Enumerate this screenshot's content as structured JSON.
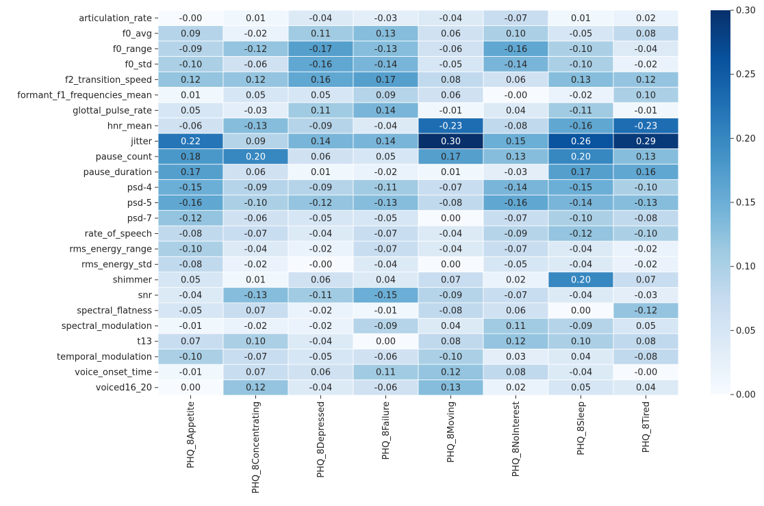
{
  "chart_data": {
    "type": "heatmap",
    "title": "",
    "xlabel": "",
    "ylabel": "",
    "rows": [
      "articulation_rate",
      "f0_avg",
      "f0_range",
      "f0_std",
      "f2_transition_speed",
      "formant_f1_frequencies_mean",
      "glottal_pulse_rate",
      "hnr_mean",
      "jitter",
      "pause_count",
      "pause_duration",
      "psd-4",
      "psd-5",
      "psd-7",
      "rate_of_speech",
      "rms_energy_range",
      "rms_energy_std",
      "shimmer",
      "snr",
      "spectral_flatness",
      "spectral_modulation",
      "t13",
      "temporal_modulation",
      "voice_onset_time",
      "voiced16_20"
    ],
    "columns": [
      "PHQ_8Appetite",
      "PHQ_8Concentrating",
      "PHQ_8Depressed",
      "PHQ_8Failure",
      "PHQ_8Moving",
      "PHQ_8NoInterest",
      "PHQ_8Sleep",
      "PHQ_8Tired"
    ],
    "values": [
      [
        -0.0,
        0.01,
        -0.04,
        -0.03,
        -0.04,
        -0.07,
        0.01,
        0.02
      ],
      [
        0.09,
        -0.02,
        0.11,
        0.13,
        0.06,
        0.1,
        -0.05,
        0.08
      ],
      [
        -0.09,
        -0.12,
        -0.17,
        -0.13,
        -0.06,
        -0.16,
        -0.1,
        -0.04
      ],
      [
        -0.1,
        -0.06,
        -0.16,
        -0.14,
        -0.05,
        -0.14,
        -0.1,
        -0.02
      ],
      [
        0.12,
        0.12,
        0.16,
        0.17,
        0.08,
        0.06,
        0.13,
        0.12
      ],
      [
        0.01,
        0.05,
        0.05,
        0.09,
        0.06,
        -0.0,
        -0.02,
        0.1
      ],
      [
        0.05,
        -0.03,
        0.11,
        0.14,
        -0.01,
        0.04,
        -0.11,
        -0.01
      ],
      [
        -0.06,
        -0.13,
        -0.09,
        -0.04,
        -0.23,
        -0.08,
        -0.16,
        -0.23
      ],
      [
        0.22,
        0.09,
        0.14,
        0.14,
        0.3,
        0.15,
        0.26,
        0.29
      ],
      [
        0.18,
        0.2,
        0.06,
        0.05,
        0.17,
        0.13,
        0.2,
        0.13
      ],
      [
        0.17,
        0.06,
        0.01,
        -0.02,
        0.01,
        -0.03,
        0.17,
        0.16
      ],
      [
        -0.15,
        -0.09,
        -0.09,
        -0.11,
        -0.07,
        -0.14,
        -0.15,
        -0.1
      ],
      [
        -0.16,
        -0.1,
        -0.12,
        -0.13,
        -0.08,
        -0.16,
        -0.14,
        -0.13
      ],
      [
        -0.12,
        -0.06,
        -0.05,
        -0.05,
        0.0,
        -0.07,
        -0.1,
        -0.08
      ],
      [
        -0.08,
        -0.07,
        -0.04,
        -0.07,
        -0.04,
        -0.09,
        -0.12,
        -0.1
      ],
      [
        -0.1,
        -0.04,
        -0.02,
        -0.07,
        -0.04,
        -0.07,
        -0.04,
        -0.02
      ],
      [
        -0.08,
        -0.02,
        -0.0,
        -0.04,
        0.0,
        -0.05,
        -0.04,
        -0.02
      ],
      [
        0.05,
        0.01,
        0.06,
        0.04,
        0.07,
        0.02,
        0.2,
        0.07
      ],
      [
        -0.04,
        -0.13,
        -0.11,
        -0.15,
        -0.09,
        -0.07,
        -0.04,
        -0.03
      ],
      [
        -0.05,
        0.07,
        -0.02,
        -0.01,
        -0.08,
        0.06,
        0.0,
        -0.12
      ],
      [
        -0.01,
        -0.02,
        -0.02,
        -0.09,
        0.04,
        0.11,
        -0.09,
        0.05
      ],
      [
        0.07,
        0.1,
        -0.04,
        0.0,
        0.08,
        0.12,
        0.1,
        0.08
      ],
      [
        -0.1,
        -0.07,
        -0.05,
        -0.06,
        -0.1,
        0.03,
        0.04,
        -0.08
      ],
      [
        -0.01,
        0.07,
        0.06,
        0.11,
        0.12,
        0.08,
        -0.04,
        -0.0
      ],
      [
        0.0,
        0.12,
        -0.04,
        -0.06,
        0.13,
        0.02,
        0.05,
        0.04
      ]
    ],
    "color_scale": {
      "vmin": 0.0,
      "vmax": 0.3,
      "map": "absolute value",
      "colors": [
        "#f7fbff",
        "#deebf7",
        "#c6dbef",
        "#9ecae1",
        "#6baed6",
        "#4292c6",
        "#2171b5",
        "#08519c",
        "#08306b"
      ]
    },
    "colorbar_ticks": [
      "0.00",
      "0.05",
      "0.10",
      "0.15",
      "0.20",
      "0.25",
      "0.30"
    ],
    "grid": true,
    "legend": "colorbar-right"
  }
}
